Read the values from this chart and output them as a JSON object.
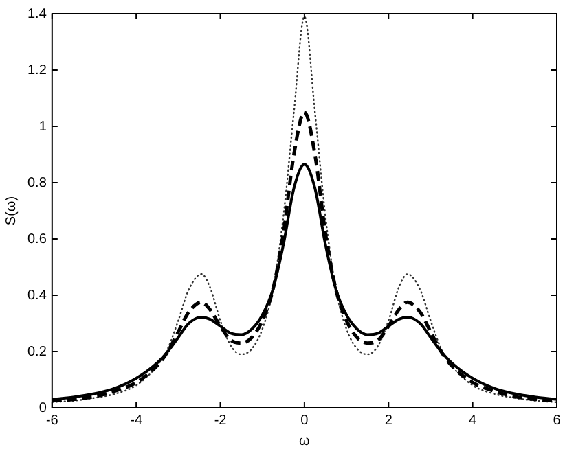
{
  "chart_data": {
    "type": "line",
    "xlabel": "ω",
    "ylabel": "S(ω)",
    "x": [
      -6,
      -5.5,
      -5,
      -4.5,
      -4,
      -3.5,
      -3.25,
      -3,
      -2.75,
      -2.45,
      -2.25,
      -2,
      -1.75,
      -1.5,
      -1.25,
      -1,
      -0.75,
      -0.5,
      -0.25,
      0,
      0.25,
      0.5,
      0.75,
      1,
      1.25,
      1.5,
      1.75,
      2,
      2.25,
      2.45,
      2.75,
      3,
      3.25,
      3.5,
      4,
      4.5,
      5,
      5.5,
      6
    ],
    "xlim": [
      -6,
      6
    ],
    "xticks": [
      -6,
      -4,
      -2,
      0,
      2,
      4,
      6
    ],
    "ylim": [
      0,
      1.4
    ],
    "yticks": [
      0,
      0.2,
      0.4,
      0.6,
      0.8,
      1,
      1.2,
      1.4
    ],
    "grid": false,
    "legend": false,
    "marker": "none",
    "series": [
      {
        "color": "#000000",
        "line_style": "solid",
        "values": [
          0.03,
          0.038,
          0.05,
          0.07,
          0.105,
          0.16,
          0.2,
          0.25,
          0.3,
          0.322,
          0.315,
          0.29,
          0.265,
          0.26,
          0.28,
          0.33,
          0.42,
          0.58,
          0.78,
          0.865,
          0.78,
          0.58,
          0.42,
          0.33,
          0.28,
          0.26,
          0.265,
          0.29,
          0.315,
          0.322,
          0.3,
          0.25,
          0.2,
          0.16,
          0.105,
          0.07,
          0.05,
          0.038,
          0.03
        ]
      },
      {
        "color": "#000000",
        "line_style": "dashed",
        "values": [
          0.025,
          0.03,
          0.04,
          0.06,
          0.09,
          0.15,
          0.2,
          0.27,
          0.34,
          0.375,
          0.35,
          0.29,
          0.24,
          0.23,
          0.25,
          0.31,
          0.42,
          0.62,
          0.9,
          1.05,
          0.9,
          0.62,
          0.42,
          0.31,
          0.25,
          0.23,
          0.24,
          0.29,
          0.35,
          0.375,
          0.34,
          0.27,
          0.2,
          0.15,
          0.09,
          0.06,
          0.04,
          0.03,
          0.025
        ]
      },
      {
        "color": "#333333",
        "line_style": "dotted",
        "values": [
          0.02,
          0.025,
          0.035,
          0.05,
          0.08,
          0.15,
          0.21,
          0.31,
          0.42,
          0.475,
          0.43,
          0.31,
          0.22,
          0.19,
          0.21,
          0.28,
          0.42,
          0.68,
          1.05,
          1.39,
          1.05,
          0.68,
          0.42,
          0.28,
          0.21,
          0.19,
          0.22,
          0.31,
          0.43,
          0.475,
          0.42,
          0.31,
          0.21,
          0.15,
          0.08,
          0.05,
          0.035,
          0.025,
          0.02
        ]
      }
    ]
  }
}
